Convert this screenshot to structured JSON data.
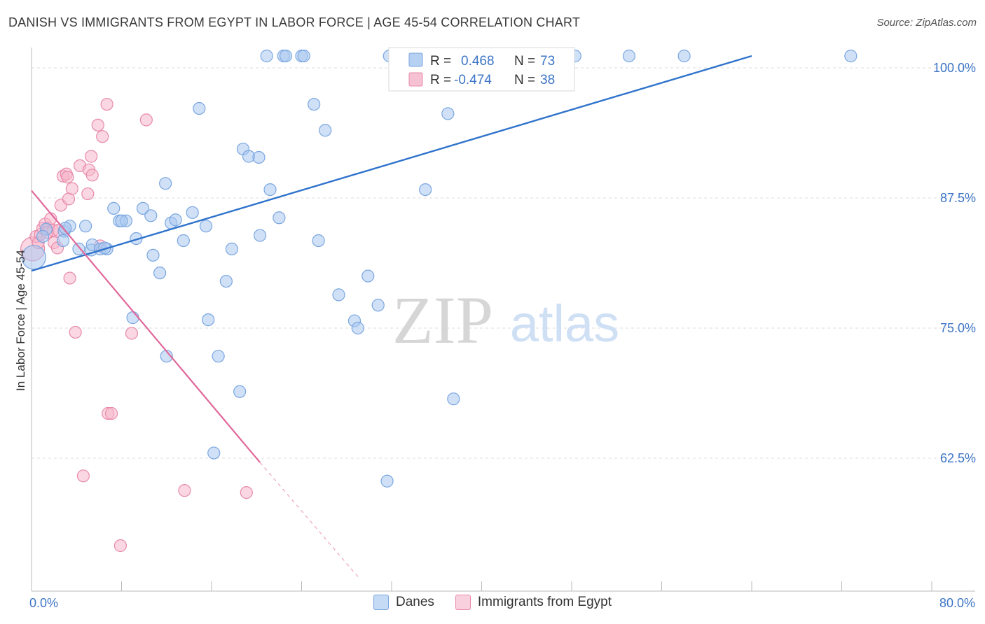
{
  "title": "DANISH VS IMMIGRANTS FROM EGYPT IN LABOR FORCE | AGE 45-54 CORRELATION CHART",
  "source": "Source: ZipAtlas.com",
  "colors": {
    "danes": "#a9c8f0",
    "danes_stroke": "#7aa6e0",
    "danes_line": "#2f73cc",
    "egypt": "#f5b6cb",
    "egypt_stroke": "#e88aaa",
    "egypt_line": "#e0689a",
    "tick_label": "#3d75c6",
    "grid": "#dddddd"
  },
  "chart_data": {
    "type": "scatter",
    "title": "DANISH VS IMMIGRANTS FROM EGYPT IN LABOR FORCE | AGE 45-54 CORRELATION CHART",
    "xlabel": "",
    "ylabel": "In Labor Force | Age 45-54",
    "xlim": [
      0,
      80
    ],
    "ylim": [
      50,
      101
    ],
    "x_tick_labels": [
      "0.0%",
      "80.0%"
    ],
    "y_ticks": [
      62.5,
      75.0,
      87.5,
      100.0
    ],
    "y_tick_labels": [
      "62.5%",
      "75.0%",
      "87.5%",
      "100.0%"
    ],
    "watermark": {
      "zip": "ZIP",
      "atlas": "atlas"
    },
    "stats": [
      {
        "series": "Danes",
        "r_label": "R =",
        "r": "0.468",
        "n_label": "N =",
        "n": "73"
      },
      {
        "series": "Immigrants from Egypt",
        "r_label": "R =",
        "r": "-0.474",
        "n_label": "N =",
        "n": "38"
      }
    ],
    "series": [
      {
        "name": "Danes",
        "trend": {
          "x": [
            0,
            64
          ],
          "y": [
            80.5,
            100.0
          ]
        },
        "points": [
          {
            "x": 0.2,
            "y": 81.8,
            "big": true
          },
          {
            "x": 1.3,
            "y": 84.5
          },
          {
            "x": 2.9,
            "y": 84.3
          },
          {
            "x": 3.4,
            "y": 84.8
          },
          {
            "x": 4.8,
            "y": 84.8
          },
          {
            "x": 2.8,
            "y": 83.4
          },
          {
            "x": 5.3,
            "y": 82.5
          },
          {
            "x": 5.4,
            "y": 83.0
          },
          {
            "x": 6.1,
            "y": 82.6
          },
          {
            "x": 6.7,
            "y": 82.6
          },
          {
            "x": 7.3,
            "y": 86.5
          },
          {
            "x": 7.8,
            "y": 85.3
          },
          {
            "x": 8.4,
            "y": 85.3
          },
          {
            "x": 9.3,
            "y": 83.6
          },
          {
            "x": 9.9,
            "y": 86.5
          },
          {
            "x": 10.6,
            "y": 85.8
          },
          {
            "x": 10.8,
            "y": 82.0
          },
          {
            "x": 11.4,
            "y": 80.3
          },
          {
            "x": 11.9,
            "y": 88.9
          },
          {
            "x": 12.4,
            "y": 85.1
          },
          {
            "x": 12.8,
            "y": 85.4
          },
          {
            "x": 13.5,
            "y": 83.4
          },
          {
            "x": 14.3,
            "y": 86.1
          },
          {
            "x": 14.9,
            "y": 96.1
          },
          {
            "x": 15.5,
            "y": 84.8
          },
          {
            "x": 15.7,
            "y": 75.8
          },
          {
            "x": 16.6,
            "y": 72.3
          },
          {
            "x": 17.3,
            "y": 79.5
          },
          {
            "x": 17.8,
            "y": 82.6
          },
          {
            "x": 18.8,
            "y": 92.2
          },
          {
            "x": 19.3,
            "y": 91.5
          },
          {
            "x": 20.2,
            "y": 91.4
          },
          {
            "x": 20.3,
            "y": 83.9
          },
          {
            "x": 21.2,
            "y": 88.3
          },
          {
            "x": 22.0,
            "y": 85.6
          },
          {
            "x": 20.9,
            "y": 100.0
          },
          {
            "x": 22.4,
            "y": 100.0
          },
          {
            "x": 22.6,
            "y": 100.0
          },
          {
            "x": 24.0,
            "y": 100.0
          },
          {
            "x": 24.2,
            "y": 100.0
          },
          {
            "x": 25.1,
            "y": 96.5
          },
          {
            "x": 25.5,
            "y": 83.4
          },
          {
            "x": 26.1,
            "y": 94.0
          },
          {
            "x": 27.3,
            "y": 78.2
          },
          {
            "x": 28.7,
            "y": 75.7
          },
          {
            "x": 29.0,
            "y": 75.0
          },
          {
            "x": 29.9,
            "y": 80.0
          },
          {
            "x": 30.8,
            "y": 77.2
          },
          {
            "x": 31.6,
            "y": 60.3
          },
          {
            "x": 31.8,
            "y": 100.0
          },
          {
            "x": 32.5,
            "y": 100.0
          },
          {
            "x": 35.0,
            "y": 88.3
          },
          {
            "x": 37.0,
            "y": 95.6
          },
          {
            "x": 37.5,
            "y": 68.2
          },
          {
            "x": 38.1,
            "y": 100.0
          },
          {
            "x": 38.6,
            "y": 100.0
          },
          {
            "x": 41.0,
            "y": 100.0
          },
          {
            "x": 42.3,
            "y": 100.0
          },
          {
            "x": 43.8,
            "y": 100.0
          },
          {
            "x": 46.2,
            "y": 100.0
          },
          {
            "x": 48.3,
            "y": 100.0
          },
          {
            "x": 53.1,
            "y": 100.0
          },
          {
            "x": 58.0,
            "y": 100.0
          },
          {
            "x": 72.8,
            "y": 100.0
          },
          {
            "x": 9.0,
            "y": 76.0
          },
          {
            "x": 12.0,
            "y": 72.3
          },
          {
            "x": 18.5,
            "y": 68.9
          },
          {
            "x": 16.2,
            "y": 63.0
          },
          {
            "x": 6.5,
            "y": 82.7
          },
          {
            "x": 1.0,
            "y": 83.8
          },
          {
            "x": 4.2,
            "y": 82.6
          },
          {
            "x": 8.0,
            "y": 85.3
          },
          {
            "x": 3.0,
            "y": 84.6
          }
        ]
      },
      {
        "name": "Immigrants from Egypt",
        "trend": {
          "x": [
            0,
            20.3
          ],
          "y": [
            88.2,
            62.1
          ]
        },
        "trend_dashed": {
          "x": [
            20.3,
            29.1
          ],
          "y": [
            62.1,
            51.0
          ]
        },
        "points": [
          {
            "x": 0.1,
            "y": 82.6,
            "big": true
          },
          {
            "x": 0.4,
            "y": 83.8
          },
          {
            "x": 0.6,
            "y": 83.2
          },
          {
            "x": 0.8,
            "y": 84.0
          },
          {
            "x": 1.0,
            "y": 84.6
          },
          {
            "x": 1.2,
            "y": 85.0
          },
          {
            "x": 1.5,
            "y": 84.6
          },
          {
            "x": 1.7,
            "y": 85.5
          },
          {
            "x": 1.9,
            "y": 84.4
          },
          {
            "x": 2.0,
            "y": 83.2
          },
          {
            "x": 2.3,
            "y": 82.7
          },
          {
            "x": 2.6,
            "y": 86.8
          },
          {
            "x": 2.8,
            "y": 89.6
          },
          {
            "x": 3.1,
            "y": 89.8
          },
          {
            "x": 3.3,
            "y": 87.4
          },
          {
            "x": 3.4,
            "y": 79.8
          },
          {
            "x": 3.6,
            "y": 88.4
          },
          {
            "x": 3.9,
            "y": 74.6
          },
          {
            "x": 4.3,
            "y": 90.6
          },
          {
            "x": 4.6,
            "y": 60.8
          },
          {
            "x": 5.0,
            "y": 87.9
          },
          {
            "x": 5.1,
            "y": 90.2
          },
          {
            "x": 5.3,
            "y": 91.5
          },
          {
            "x": 5.4,
            "y": 89.7
          },
          {
            "x": 5.9,
            "y": 94.5
          },
          {
            "x": 6.1,
            "y": 82.9
          },
          {
            "x": 6.3,
            "y": 93.4
          },
          {
            "x": 6.7,
            "y": 96.5
          },
          {
            "x": 6.8,
            "y": 66.8
          },
          {
            "x": 7.1,
            "y": 66.8
          },
          {
            "x": 7.9,
            "y": 54.1
          },
          {
            "x": 8.9,
            "y": 74.5
          },
          {
            "x": 10.2,
            "y": 95.0
          },
          {
            "x": 13.6,
            "y": 59.4
          },
          {
            "x": 19.1,
            "y": 59.2
          },
          {
            "x": 3.2,
            "y": 89.5
          },
          {
            "x": 2.4,
            "y": 84.4
          },
          {
            "x": 1.4,
            "y": 84.2
          }
        ]
      }
    ]
  }
}
